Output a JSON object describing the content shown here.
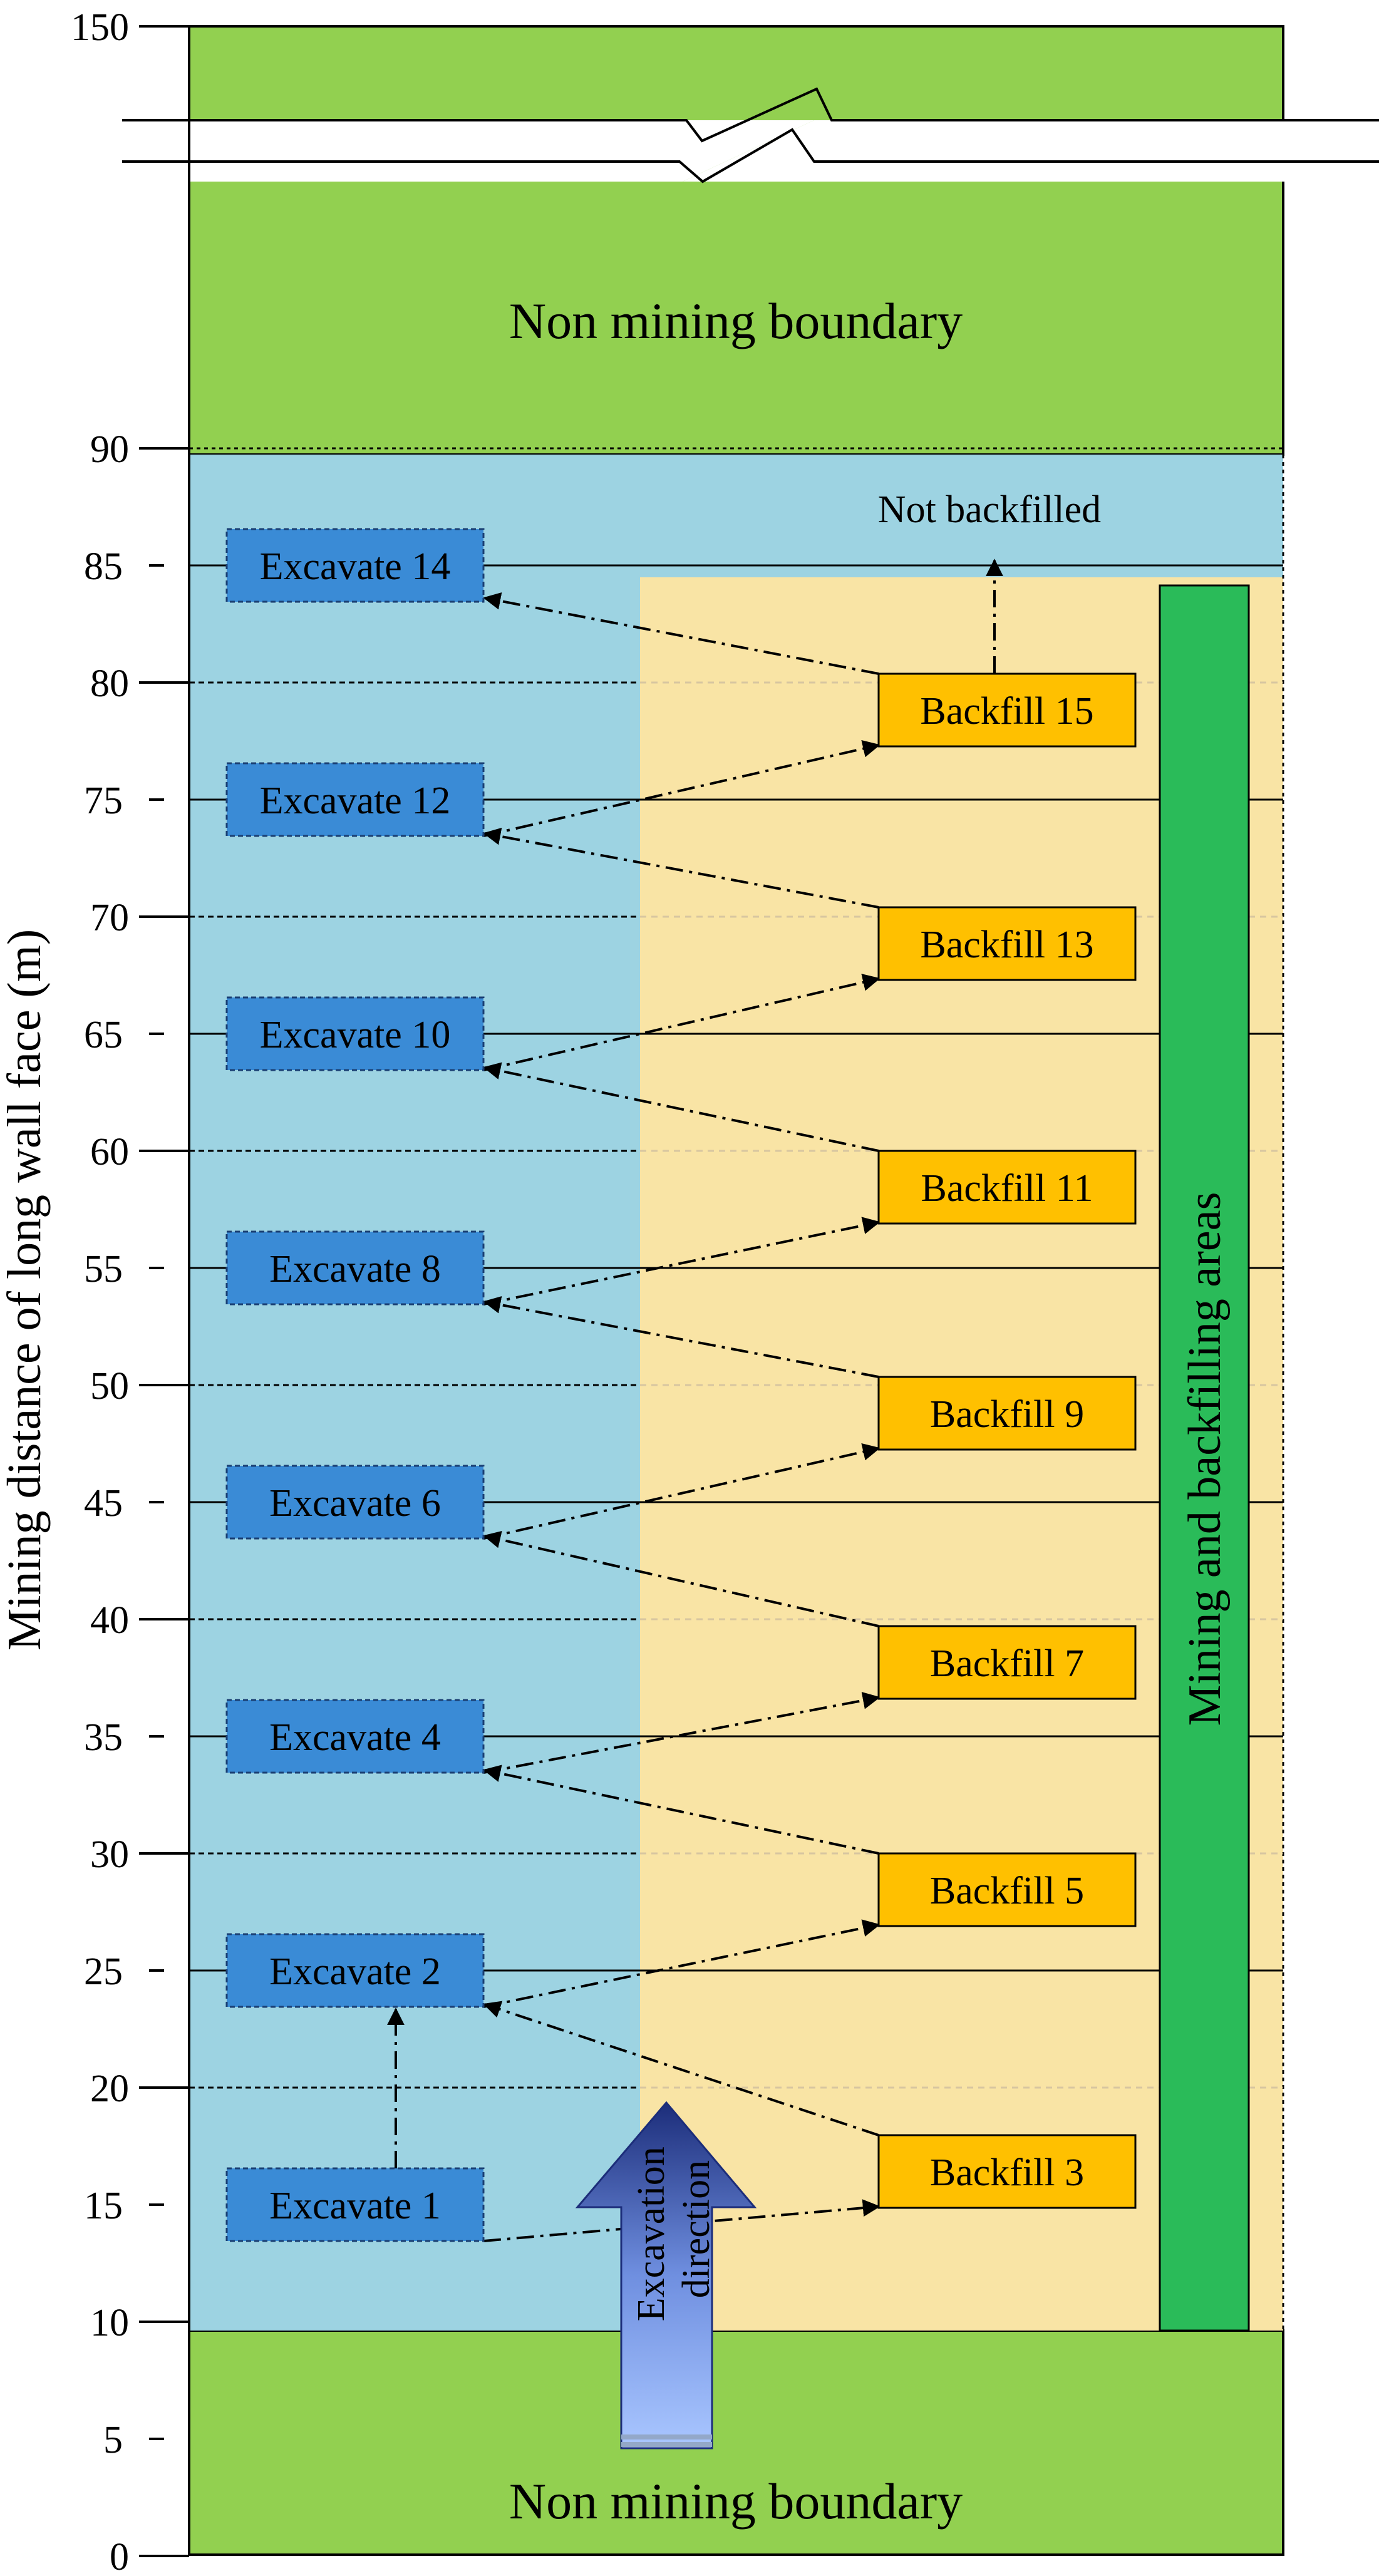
{
  "axis": {
    "label": "Mining distance of long wall face (m)",
    "ticks": [
      "0",
      "5",
      "10",
      "15",
      "20",
      "25",
      "30",
      "35",
      "40",
      "45",
      "50",
      "55",
      "60",
      "65",
      "70",
      "75",
      "80",
      "85",
      "90",
      "150"
    ]
  },
  "regions": {
    "top_boundary": "Non mining boundary",
    "bottom_boundary": "Non mining boundary",
    "not_backfilled": "Not backfilled",
    "mining_area": "Mining and backfilling areas",
    "excavation_direction": [
      "Excavation",
      "direction"
    ]
  },
  "excavate_boxes": [
    {
      "label": "Excavate 1",
      "distance": 15
    },
    {
      "label": "Excavate 2",
      "distance": 25
    },
    {
      "label": "Excavate 4",
      "distance": 35
    },
    {
      "label": "Excavate 6",
      "distance": 45
    },
    {
      "label": "Excavate 8",
      "distance": 55
    },
    {
      "label": "Excavate 10",
      "distance": 65
    },
    {
      "label": "Excavate 12",
      "distance": 75
    },
    {
      "label": "Excavate 14",
      "distance": 85
    }
  ],
  "backfill_boxes": [
    {
      "label": "Backfill 3"
    },
    {
      "label": "Backfill 5"
    },
    {
      "label": "Backfill 7"
    },
    {
      "label": "Backfill 9"
    },
    {
      "label": "Backfill 11"
    },
    {
      "label": "Backfill 13"
    },
    {
      "label": "Backfill 15"
    }
  ],
  "colors": {
    "boundary_green": "#92D050",
    "mined_blue": "#9DD3E2",
    "backfill_area": "#F9E4A5",
    "mining_bar": "#2ABB59",
    "excavate_box": "#3A8BD6",
    "backfill_box": "#FFC000"
  }
}
